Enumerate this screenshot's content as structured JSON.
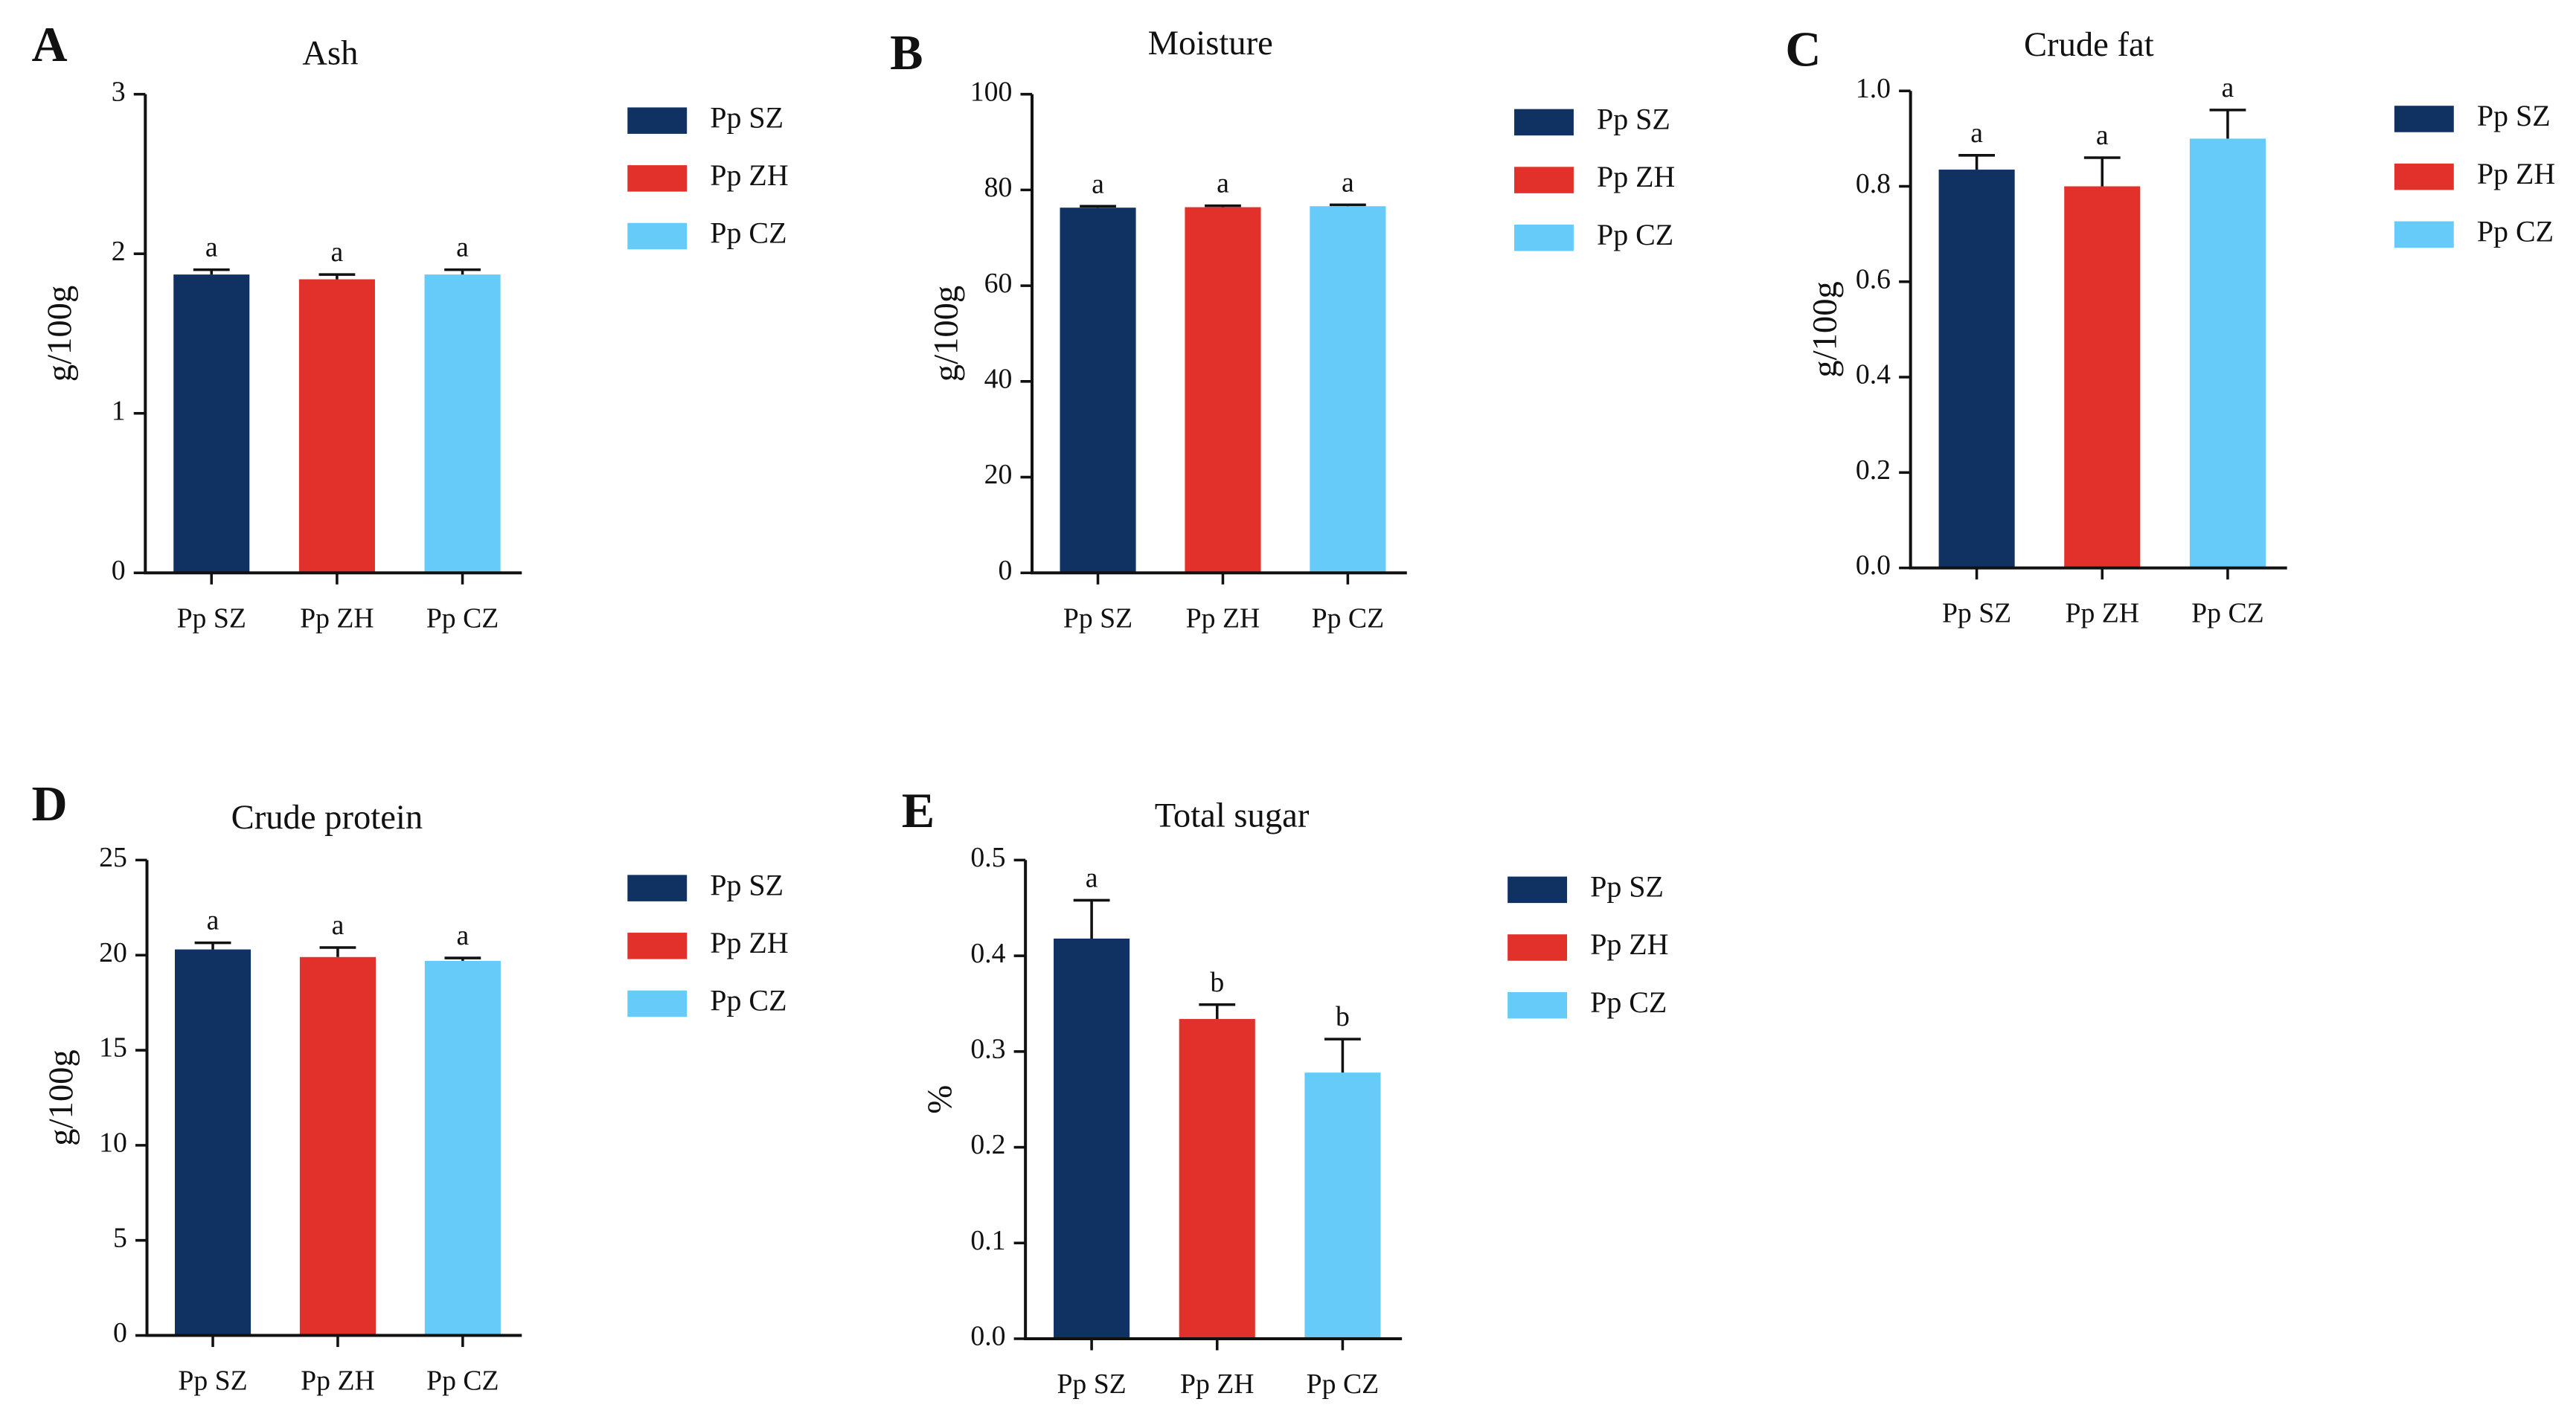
{
  "chart_data": [
    {
      "type": "bar",
      "panel": "A",
      "title": "Ash",
      "ylabel": "g/100g",
      "categories": [
        "Pp SZ",
        "Pp ZH",
        "Pp CZ"
      ],
      "colors": [
        "#0f3263",
        "#e2302a",
        "#66cbf8"
      ],
      "values": [
        1.87,
        1.84,
        1.87
      ],
      "errors": [
        0.03,
        0.03,
        0.03
      ],
      "annotations": [
        "a",
        "a",
        "a"
      ],
      "ylim": [
        0,
        3
      ],
      "yticks": [
        0,
        1,
        2,
        3
      ]
    },
    {
      "type": "bar",
      "panel": "B",
      "title": "Moisture",
      "ylabel": "g/100g",
      "categories": [
        "Pp SZ",
        "Pp ZH",
        "Pp CZ"
      ],
      "colors": [
        "#0f3263",
        "#e2302a",
        "#66cbf8"
      ],
      "values": [
        76.3,
        76.4,
        76.6
      ],
      "errors": [
        0.3,
        0.3,
        0.3
      ],
      "annotations": [
        "a",
        "a",
        "a"
      ],
      "ylim": [
        0,
        100
      ],
      "yticks": [
        0,
        20,
        40,
        60,
        80,
        100
      ]
    },
    {
      "type": "bar",
      "panel": "C",
      "title": "Crude fat",
      "ylabel": "g/100g",
      "categories": [
        "Pp SZ",
        "Pp ZH",
        "Pp CZ"
      ],
      "colors": [
        "#0f3263",
        "#e2302a",
        "#66cbf8"
      ],
      "values": [
        0.835,
        0.8,
        0.9
      ],
      "errors": [
        0.03,
        0.06,
        0.06
      ],
      "annotations": [
        "a",
        "a",
        "a"
      ],
      "ylim": [
        0,
        1
      ],
      "yticks": [
        {
          "value": 0,
          "label": "0.0"
        },
        0.2,
        0.4,
        0.6,
        0.8,
        {
          "value": 1,
          "label": "1.0"
        }
      ]
    },
    {
      "type": "bar",
      "panel": "D",
      "title": "Crude protein",
      "ylabel": "g/100g",
      "categories": [
        "Pp SZ",
        "Pp ZH",
        "Pp CZ"
      ],
      "colors": [
        "#0f3263",
        "#e2302a",
        "#66cbf8"
      ],
      "values": [
        20.3,
        19.9,
        19.7
      ],
      "errors": [
        0.35,
        0.5,
        0.15
      ],
      "annotations": [
        "a",
        "a",
        "a"
      ],
      "ylim": [
        0,
        25
      ],
      "yticks": [
        0,
        5,
        10,
        15,
        20,
        25
      ]
    },
    {
      "type": "bar",
      "panel": "E",
      "title": "Total sugar",
      "ylabel": "%",
      "categories": [
        "Pp SZ",
        "Pp ZH",
        "Pp CZ"
      ],
      "colors": [
        "#0f3263",
        "#e2302a",
        "#66cbf8"
      ],
      "values": [
        0.418,
        0.334,
        0.278
      ],
      "errors": [
        0.04,
        0.015,
        0.035
      ],
      "annotations": [
        "a",
        "b",
        "b"
      ],
      "ylim": [
        0,
        0.5
      ],
      "yticks": [
        {
          "value": 0,
          "label": "0.0"
        },
        0.1,
        0.2,
        0.3,
        0.4,
        0.5
      ]
    }
  ]
}
